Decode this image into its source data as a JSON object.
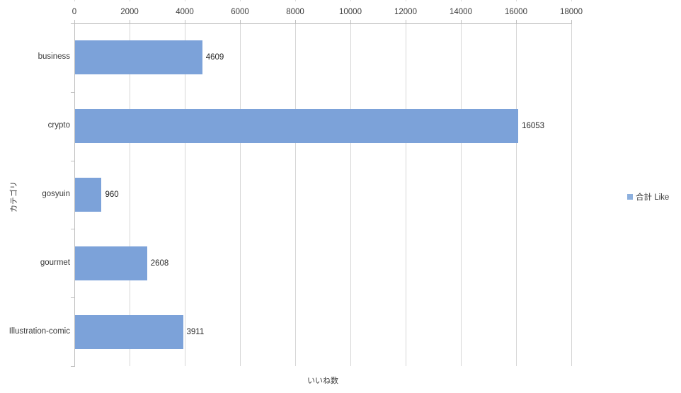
{
  "chart_data": {
    "type": "bar",
    "orientation": "horizontal",
    "title": "",
    "categories": [
      "business",
      "crypto",
      "gosyuin",
      "gourmet",
      "Illustration-comic"
    ],
    "series": [
      {
        "name": "合計 Like",
        "values": [
          4609,
          16053,
          960,
          2608,
          3911
        ]
      }
    ],
    "value_labels": [
      "4609",
      "16053",
      "960",
      "2608",
      "3911"
    ],
    "x_ticks": [
      "0",
      "2000",
      "4000",
      "6000",
      "8000",
      "10000",
      "12000",
      "14000",
      "16000",
      "18000"
    ],
    "xlim": [
      0,
      18000
    ],
    "x_tick_step": 2000,
    "xlabel": "いいね数",
    "ylabel": "カテゴリ",
    "grid": true,
    "legend_position": "right",
    "legend_label": "合計 Like",
    "colors": {
      "bar": "#7ca2d9",
      "legend_swatch": "#8db0de",
      "gridline": "#d6d6d6",
      "axis": "#bfbfbf",
      "text": "#3b3b3b",
      "background": "#ffffff"
    }
  }
}
